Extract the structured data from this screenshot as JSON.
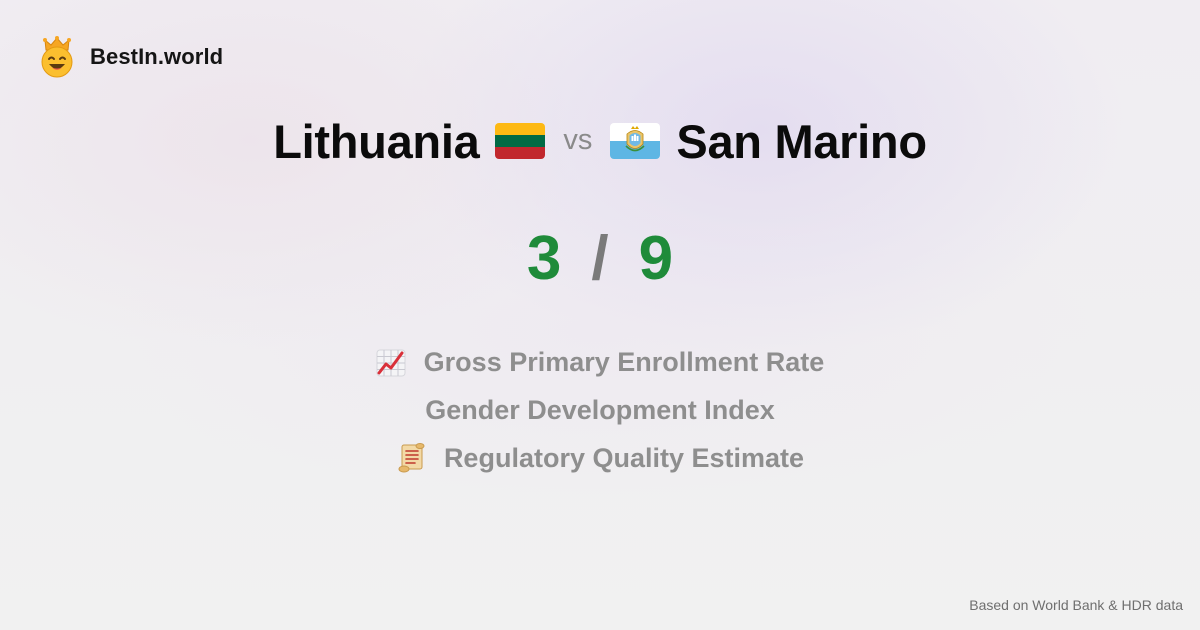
{
  "brand": {
    "name": "BestIn.world",
    "icon": "crown-smiley-icon"
  },
  "comparison": {
    "left": {
      "country": "Lithuania",
      "flag": "lithuania-flag",
      "score": "3"
    },
    "separator": "vs",
    "right": {
      "country": "San Marino",
      "flag": "san-marino-flag",
      "score": "9"
    },
    "score_separator": "/"
  },
  "metrics": [
    {
      "label": "Gross Primary Enrollment Rate",
      "icon": "chart-increasing-icon"
    },
    {
      "label": "Gender Development Index",
      "icon": ""
    },
    {
      "label": "Regulatory Quality Estimate",
      "icon": "scroll-icon"
    }
  ],
  "footer": {
    "note": "Based on World Bank & HDR data"
  },
  "colors": {
    "score": "#1f8b3a",
    "muted": "#8e8e8e",
    "background": "#efedf1"
  }
}
